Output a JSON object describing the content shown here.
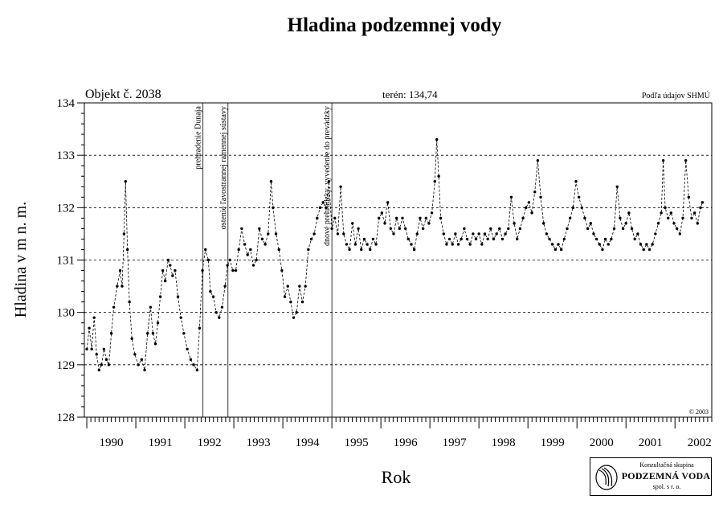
{
  "chart_data": {
    "type": "line",
    "title": "Hladina podzemnej vody",
    "ylabel": "Hladina v m n. m.",
    "xlabel": "Rok",
    "ylim": [
      128,
      134
    ],
    "xlim": [
      1989.95,
      2002.75
    ],
    "yticks": [
      128,
      129,
      130,
      131,
      132,
      133,
      134
    ],
    "xticks": [
      "1990",
      "1991",
      "1992",
      "1993",
      "1994",
      "1995",
      "1996",
      "1997",
      "1998",
      "1999",
      "2000",
      "2001",
      "2002"
    ],
    "grid": "horizontal dashed at 129, 130, 131, 132, 133",
    "object_label": "Objekt č. 2038",
    "terrain_label": "terén: 134,74",
    "source_label": "Podľa údajov SHMÚ",
    "copyright": "© 2003",
    "events": [
      {
        "x": 1992.37,
        "label": "prehradenie Dunaja"
      },
      {
        "x": 1992.88,
        "label": "ostenie ľavostrannej ramennej sústavy"
      },
      {
        "x": 1995.0,
        "label": "dnové prehrádzky, vyvedenie do prevádzky"
      }
    ],
    "series": [
      {
        "style": "dashed line with dot markers",
        "points": [
          [
            1990.0,
            129.3
          ],
          [
            1990.05,
            129.7
          ],
          [
            1990.1,
            129.3
          ],
          [
            1990.15,
            129.9
          ],
          [
            1990.2,
            129.2
          ],
          [
            1990.25,
            128.9
          ],
          [
            1990.3,
            129.0
          ],
          [
            1990.35,
            129.3
          ],
          [
            1990.4,
            129.1
          ],
          [
            1990.45,
            129.0
          ],
          [
            1990.5,
            129.6
          ],
          [
            1990.55,
            130.1
          ],
          [
            1990.62,
            130.5
          ],
          [
            1990.68,
            130.8
          ],
          [
            1990.72,
            130.5
          ],
          [
            1990.76,
            131.5
          ],
          [
            1990.79,
            132.5
          ],
          [
            1990.83,
            131.2
          ],
          [
            1990.87,
            130.2
          ],
          [
            1990.92,
            129.5
          ],
          [
            1990.98,
            129.2
          ],
          [
            1991.05,
            129.0
          ],
          [
            1991.12,
            129.1
          ],
          [
            1991.18,
            128.9
          ],
          [
            1991.24,
            129.6
          ],
          [
            1991.3,
            130.1
          ],
          [
            1991.35,
            129.6
          ],
          [
            1991.4,
            129.4
          ],
          [
            1991.45,
            129.8
          ],
          [
            1991.5,
            130.3
          ],
          [
            1991.55,
            130.8
          ],
          [
            1991.6,
            130.6
          ],
          [
            1991.66,
            131.0
          ],
          [
            1991.7,
            130.9
          ],
          [
            1991.75,
            130.7
          ],
          [
            1991.8,
            130.8
          ],
          [
            1991.86,
            130.3
          ],
          [
            1991.92,
            129.9
          ],
          [
            1991.98,
            129.6
          ],
          [
            1992.05,
            129.3
          ],
          [
            1992.12,
            129.1
          ],
          [
            1992.18,
            129.0
          ],
          [
            1992.25,
            128.9
          ],
          [
            1992.3,
            129.7
          ],
          [
            1992.36,
            130.8
          ],
          [
            1992.42,
            131.2
          ],
          [
            1992.48,
            131.0
          ],
          [
            1992.52,
            130.4
          ],
          [
            1992.58,
            130.3
          ],
          [
            1992.64,
            130.0
          ],
          [
            1992.7,
            129.9
          ],
          [
            1992.76,
            130.1
          ],
          [
            1992.82,
            130.5
          ],
          [
            1992.87,
            130.9
          ],
          [
            1992.92,
            131.0
          ],
          [
            1992.98,
            130.8
          ],
          [
            1993.04,
            130.8
          ],
          [
            1993.1,
            131.2
          ],
          [
            1993.16,
            131.6
          ],
          [
            1993.22,
            131.3
          ],
          [
            1993.28,
            131.1
          ],
          [
            1993.34,
            131.2
          ],
          [
            1993.4,
            130.9
          ],
          [
            1993.46,
            131.0
          ],
          [
            1993.52,
            131.6
          ],
          [
            1993.58,
            131.4
          ],
          [
            1993.64,
            131.3
          ],
          [
            1993.7,
            131.5
          ],
          [
            1993.76,
            132.5
          ],
          [
            1993.8,
            132.0
          ],
          [
            1993.86,
            131.5
          ],
          [
            1993.92,
            131.2
          ],
          [
            1993.98,
            130.8
          ],
          [
            1994.04,
            130.3
          ],
          [
            1994.1,
            130.5
          ],
          [
            1994.16,
            130.2
          ],
          [
            1994.22,
            129.9
          ],
          [
            1994.28,
            130.0
          ],
          [
            1994.34,
            130.5
          ],
          [
            1994.4,
            130.2
          ],
          [
            1994.46,
            130.5
          ],
          [
            1994.52,
            131.2
          ],
          [
            1994.58,
            131.4
          ],
          [
            1994.64,
            131.5
          ],
          [
            1994.7,
            131.8
          ],
          [
            1994.76,
            132.0
          ],
          [
            1994.82,
            132.1
          ],
          [
            1994.88,
            132.0
          ],
          [
            1994.94,
            132.5
          ],
          [
            1995.0,
            131.6
          ],
          [
            1995.06,
            131.8
          ],
          [
            1995.12,
            131.5
          ],
          [
            1995.18,
            132.4
          ],
          [
            1995.24,
            131.5
          ],
          [
            1995.3,
            131.3
          ],
          [
            1995.36,
            131.2
          ],
          [
            1995.42,
            131.7
          ],
          [
            1995.48,
            131.3
          ],
          [
            1995.54,
            131.6
          ],
          [
            1995.6,
            131.2
          ],
          [
            1995.66,
            131.4
          ],
          [
            1995.72,
            131.3
          ],
          [
            1995.78,
            131.2
          ],
          [
            1995.84,
            131.4
          ],
          [
            1995.9,
            131.3
          ],
          [
            1995.96,
            131.8
          ],
          [
            1996.02,
            131.9
          ],
          [
            1996.08,
            131.7
          ],
          [
            1996.14,
            132.1
          ],
          [
            1996.2,
            131.6
          ],
          [
            1996.26,
            131.5
          ],
          [
            1996.32,
            131.8
          ],
          [
            1996.38,
            131.6
          ],
          [
            1996.44,
            131.8
          ],
          [
            1996.5,
            131.6
          ],
          [
            1996.56,
            131.4
          ],
          [
            1996.62,
            131.3
          ],
          [
            1996.68,
            131.2
          ],
          [
            1996.74,
            131.5
          ],
          [
            1996.8,
            131.8
          ],
          [
            1996.86,
            131.6
          ],
          [
            1996.92,
            131.8
          ],
          [
            1996.98,
            131.7
          ],
          [
            1997.04,
            131.9
          ],
          [
            1997.1,
            132.5
          ],
          [
            1997.14,
            133.3
          ],
          [
            1997.18,
            132.6
          ],
          [
            1997.22,
            131.8
          ],
          [
            1997.28,
            131.5
          ],
          [
            1997.34,
            131.3
          ],
          [
            1997.4,
            131.4
          ],
          [
            1997.46,
            131.3
          ],
          [
            1997.52,
            131.5
          ],
          [
            1997.58,
            131.3
          ],
          [
            1997.64,
            131.4
          ],
          [
            1997.7,
            131.6
          ],
          [
            1997.76,
            131.4
          ],
          [
            1997.82,
            131.3
          ],
          [
            1997.88,
            131.5
          ],
          [
            1997.94,
            131.4
          ],
          [
            1998.0,
            131.5
          ],
          [
            1998.06,
            131.3
          ],
          [
            1998.12,
            131.5
          ],
          [
            1998.18,
            131.4
          ],
          [
            1998.24,
            131.6
          ],
          [
            1998.3,
            131.4
          ],
          [
            1998.36,
            131.5
          ],
          [
            1998.42,
            131.6
          ],
          [
            1998.48,
            131.4
          ],
          [
            1998.54,
            131.5
          ],
          [
            1998.6,
            131.6
          ],
          [
            1998.66,
            132.2
          ],
          [
            1998.72,
            131.7
          ],
          [
            1998.78,
            131.4
          ],
          [
            1998.84,
            131.6
          ],
          [
            1998.9,
            131.8
          ],
          [
            1998.96,
            132.0
          ],
          [
            1999.02,
            132.1
          ],
          [
            1999.08,
            131.9
          ],
          [
            1999.14,
            132.3
          ],
          [
            1999.2,
            132.9
          ],
          [
            1999.26,
            132.2
          ],
          [
            1999.32,
            131.7
          ],
          [
            1999.38,
            131.5
          ],
          [
            1999.44,
            131.4
          ],
          [
            1999.5,
            131.3
          ],
          [
            1999.56,
            131.2
          ],
          [
            1999.62,
            131.3
          ],
          [
            1999.68,
            131.2
          ],
          [
            1999.74,
            131.4
          ],
          [
            1999.8,
            131.6
          ],
          [
            1999.86,
            131.8
          ],
          [
            1999.92,
            132.0
          ],
          [
            1999.98,
            132.5
          ],
          [
            2000.04,
            132.2
          ],
          [
            2000.1,
            132.0
          ],
          [
            2000.16,
            131.8
          ],
          [
            2000.22,
            131.6
          ],
          [
            2000.28,
            131.7
          ],
          [
            2000.34,
            131.5
          ],
          [
            2000.4,
            131.4
          ],
          [
            2000.46,
            131.3
          ],
          [
            2000.52,
            131.2
          ],
          [
            2000.58,
            131.4
          ],
          [
            2000.64,
            131.3
          ],
          [
            2000.7,
            131.4
          ],
          [
            2000.76,
            131.6
          ],
          [
            2000.82,
            132.4
          ],
          [
            2000.88,
            131.8
          ],
          [
            2000.94,
            131.6
          ],
          [
            2001.0,
            131.7
          ],
          [
            2001.06,
            131.9
          ],
          [
            2001.12,
            131.6
          ],
          [
            2001.18,
            131.4
          ],
          [
            2001.24,
            131.5
          ],
          [
            2001.3,
            131.3
          ],
          [
            2001.36,
            131.2
          ],
          [
            2001.42,
            131.3
          ],
          [
            2001.48,
            131.2
          ],
          [
            2001.54,
            131.3
          ],
          [
            2001.6,
            131.5
          ],
          [
            2001.66,
            131.7
          ],
          [
            2001.72,
            131.9
          ],
          [
            2001.76,
            132.9
          ],
          [
            2001.8,
            132.0
          ],
          [
            2001.86,
            131.8
          ],
          [
            2001.92,
            131.9
          ],
          [
            2001.98,
            131.7
          ],
          [
            2002.04,
            131.6
          ],
          [
            2002.1,
            131.5
          ],
          [
            2002.16,
            131.8
          ],
          [
            2002.22,
            132.9
          ],
          [
            2002.28,
            132.2
          ],
          [
            2002.34,
            131.8
          ],
          [
            2002.4,
            131.9
          ],
          [
            2002.46,
            131.7
          ],
          [
            2002.52,
            132.0
          ],
          [
            2002.56,
            132.1
          ]
        ]
      }
    ]
  },
  "logo": {
    "line1": "Konzultačná skupina",
    "line2": "PODZEMNÁ VODA",
    "line3": "spol. s r. o."
  }
}
